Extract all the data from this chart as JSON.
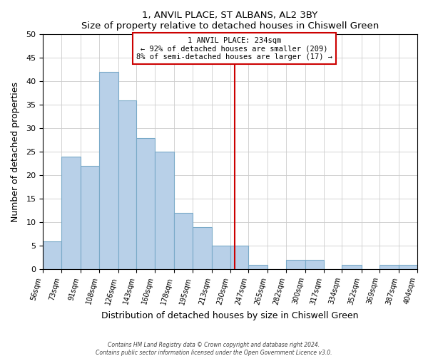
{
  "title1": "1, ANVIL PLACE, ST ALBANS, AL2 3BY",
  "title2": "Size of property relative to detached houses in Chiswell Green",
  "xlabel": "Distribution of detached houses by size in Chiswell Green",
  "ylabel": "Number of detached properties",
  "bin_edges": [
    56,
    73,
    91,
    108,
    126,
    143,
    160,
    178,
    195,
    213,
    230,
    247,
    265,
    282,
    300,
    317,
    334,
    352,
    369,
    387,
    404
  ],
  "bin_labels": [
    "56sqm",
    "73sqm",
    "91sqm",
    "108sqm",
    "126sqm",
    "143sqm",
    "160sqm",
    "178sqm",
    "195sqm",
    "213sqm",
    "230sqm",
    "247sqm",
    "265sqm",
    "282sqm",
    "300sqm",
    "317sqm",
    "334sqm",
    "352sqm",
    "369sqm",
    "387sqm",
    "404sqm"
  ],
  "counts": [
    6,
    24,
    22,
    42,
    36,
    28,
    25,
    12,
    9,
    5,
    5,
    1,
    0,
    2,
    2,
    0,
    1,
    0,
    1,
    1
  ],
  "bar_color": "#b8d0e8",
  "bar_edge_color": "#7aaac8",
  "property_line_x": 234,
  "property_line_color": "#cc0000",
  "annotation_title": "1 ANVIL PLACE: 234sqm",
  "annotation_line1": "← 92% of detached houses are smaller (209)",
  "annotation_line2": "8% of semi-detached houses are larger (17) →",
  "annotation_box_edge": "#cc0000",
  "ylim": [
    0,
    50
  ],
  "yticks": [
    0,
    5,
    10,
    15,
    20,
    25,
    30,
    35,
    40,
    45,
    50
  ],
  "footer1": "Contains HM Land Registry data © Crown copyright and database right 2024.",
  "footer2": "Contains public sector information licensed under the Open Government Licence v3.0."
}
